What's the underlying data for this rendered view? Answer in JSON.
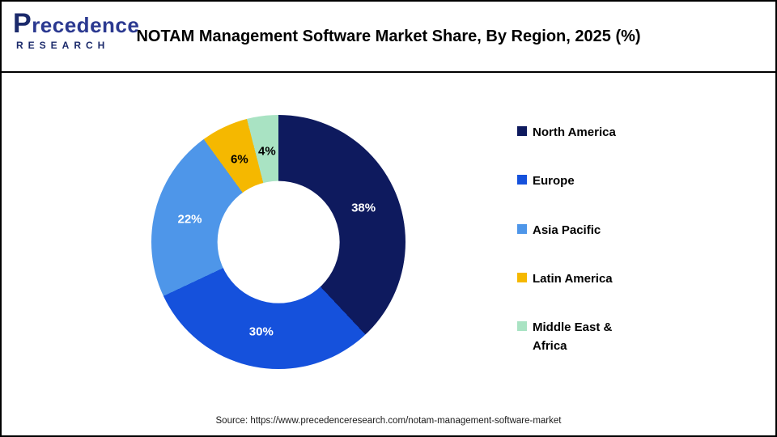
{
  "header": {
    "logo": {
      "name": "Precedence",
      "subtitle": "RESEARCH"
    },
    "title": "NOTAM Management Software Market Share, By Region, 2025 (%)"
  },
  "chart_data": {
    "type": "pie",
    "subtype": "donut",
    "title": "NOTAM Management Software Market Share, By Region, 2025 (%)",
    "unit": "%",
    "categories": [
      "North America",
      "Europe",
      "Asia Pacific",
      "Latin America",
      "Middle East & Africa"
    ],
    "values": [
      38,
      30,
      22,
      6,
      4
    ],
    "labels": [
      "38%",
      "30%",
      "22%",
      "6%",
      "4%"
    ],
    "colors": [
      "#0e1a5e",
      "#1551dc",
      "#4e96e9",
      "#f5b800",
      "#a9e3c3"
    ],
    "label_colors": [
      "#ffffff",
      "#ffffff",
      "#ffffff",
      "#000000",
      "#000000"
    ],
    "legend_position": "right",
    "start_angle_deg": 0,
    "direction": "clockwise",
    "hole_ratio": 0.48
  },
  "footer": {
    "source": "Source: https://www.precedenceresearch.com/notam-management-software-market"
  }
}
